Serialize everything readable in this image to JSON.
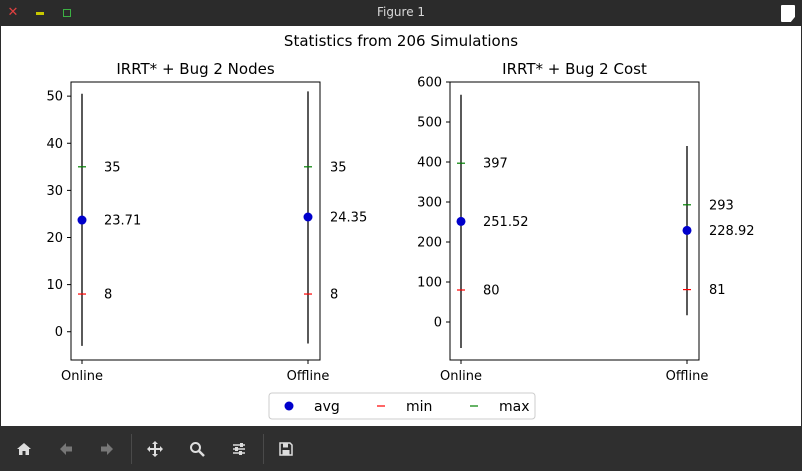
{
  "window": {
    "title": "Figure 1"
  },
  "figure": {
    "suptitle": "Statistics from 206 Simulations"
  },
  "legend": {
    "entries": [
      {
        "label": "avg",
        "marker": "circle",
        "color": "#0000cc"
      },
      {
        "label": "min",
        "marker": "hline",
        "color": "#ff0000"
      },
      {
        "label": "max",
        "marker": "hline",
        "color": "#008000"
      }
    ]
  },
  "colors": {
    "avg": "#0000cc",
    "min": "#ff0000",
    "max": "#008000",
    "errbar": "#000000"
  },
  "chart_data": [
    {
      "type": "errorbar",
      "title": "IRRT* + Bug 2 Nodes",
      "categories": [
        "Online",
        "Offline"
      ],
      "ylim": [
        -6,
        53
      ],
      "yticks": [
        0,
        10,
        20,
        30,
        40,
        50
      ],
      "series": [
        {
          "category": "Online",
          "avg": 23.71,
          "min": 8,
          "max": 35,
          "err_low": -3,
          "err_high": 50.5,
          "labels": {
            "avg": "23.71",
            "min": "8",
            "max": "35"
          }
        },
        {
          "category": "Offline",
          "avg": 24.35,
          "min": 8,
          "max": 35,
          "err_low": -2.5,
          "err_high": 51,
          "labels": {
            "avg": "24.35",
            "min": "8",
            "max": "35"
          }
        }
      ]
    },
    {
      "type": "errorbar",
      "title": "IRRT* + Bug 2 Cost",
      "categories": [
        "Online",
        "Offline"
      ],
      "ylim": [
        -95,
        600
      ],
      "yticks": [
        0,
        100,
        200,
        300,
        400,
        500,
        600
      ],
      "series": [
        {
          "category": "Online",
          "avg": 251.52,
          "min": 80,
          "max": 397,
          "err_low": -65,
          "err_high": 568,
          "labels": {
            "avg": "251.52",
            "min": "80",
            "max": "397"
          }
        },
        {
          "category": "Offline",
          "avg": 228.92,
          "min": 81,
          "max": 293,
          "err_low": 17,
          "err_high": 440,
          "labels": {
            "avg": "228.92",
            "min": "81",
            "max": "293"
          }
        }
      ]
    }
  ]
}
